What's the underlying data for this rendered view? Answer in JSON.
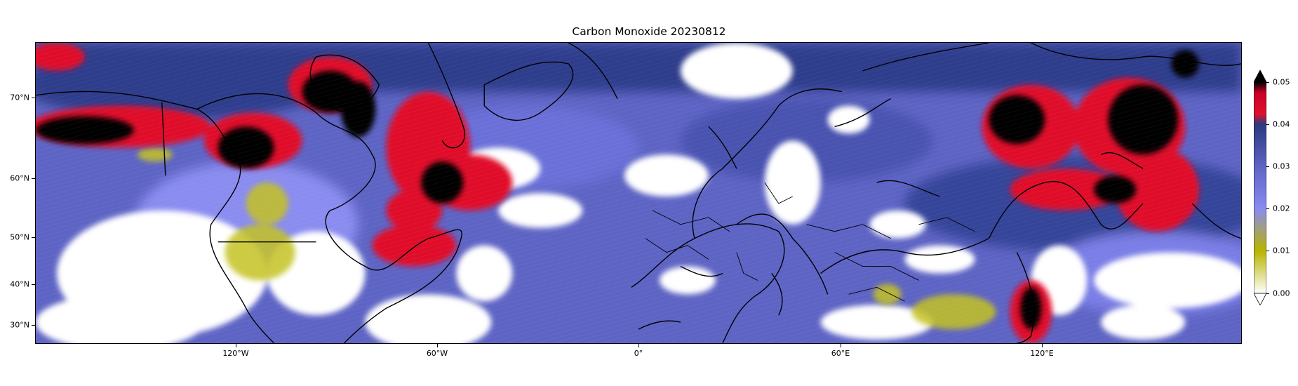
{
  "title": "Carbon Monoxide 20230812",
  "lat_ticks": [
    {
      "label": "70°N",
      "value": 70
    },
    {
      "label": "60°N",
      "value": 60
    },
    {
      "label": "50°N",
      "value": 50
    },
    {
      "label": "40°N",
      "value": 40
    },
    {
      "label": "30°N",
      "value": 30
    }
  ],
  "lon_ticks": [
    {
      "label": "120°W",
      "value": -120
    },
    {
      "label": "60°W",
      "value": -60
    },
    {
      "label": "0°",
      "value": 0
    },
    {
      "label": "60°E",
      "value": 60
    },
    {
      "label": "120°E",
      "value": 120
    }
  ],
  "colorbar": {
    "min": 0.0,
    "max": 0.05,
    "extend": "both",
    "ticks": [
      "0.00",
      "0.01",
      "0.02",
      "0.03",
      "0.04",
      "0.05"
    ],
    "colors": {
      "low": "#ffffff",
      "yellow": "#b8b400",
      "light_blue": "#8a8cf0",
      "blue": "#5e64c4",
      "dark_blue": "#2b3a80",
      "red": "#e0102a",
      "high": "#000000"
    }
  }
}
